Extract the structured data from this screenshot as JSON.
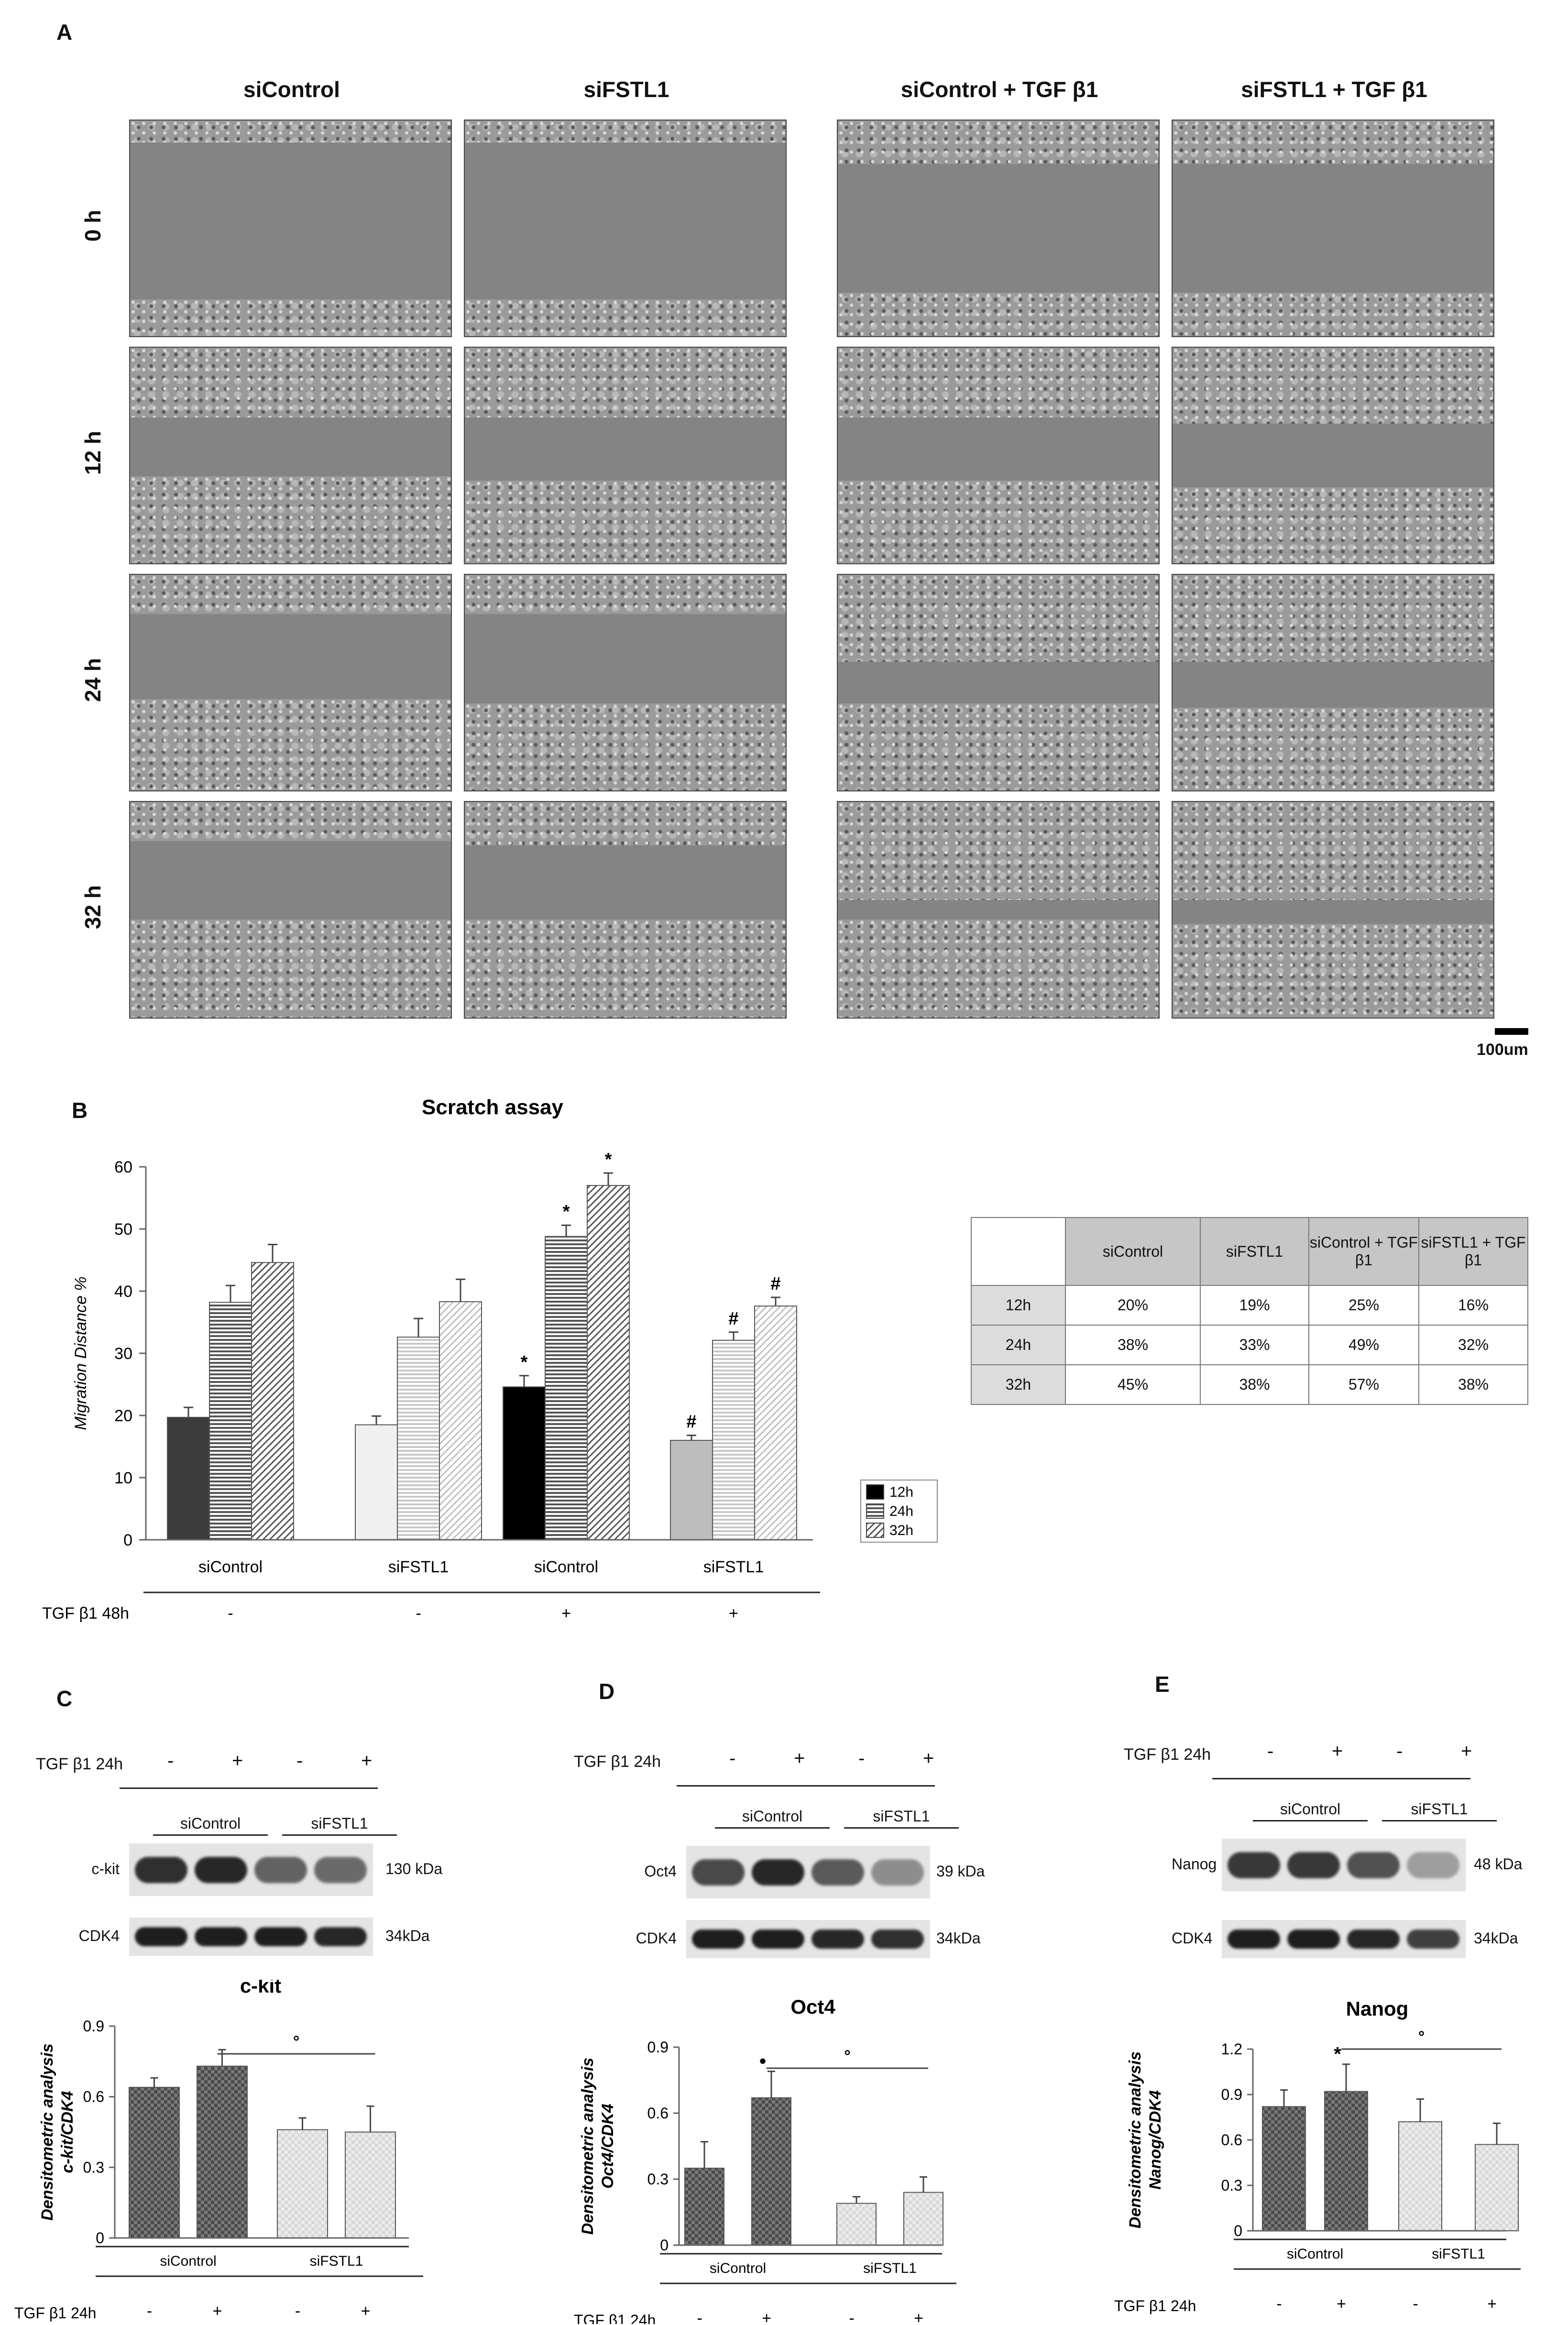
{
  "panel_a": {
    "letter": "A",
    "columns": [
      "siControl",
      "siFSTL1",
      "siControl + TGF β1",
      "siFSTL1 + TGF β1"
    ],
    "rows": [
      "0 h",
      "12 h",
      "24 h",
      "32 h"
    ],
    "scale_bar_label": "100um"
  },
  "panel_b": {
    "letter": "B",
    "table": {
      "headers": [
        "siControl",
        "siFSTL1",
        "siControl + TGF β1",
        "siFSTL1 + TGF β1"
      ],
      "rows": [
        {
          "label": "12h",
          "cells": [
            "20%",
            "19%",
            "25%",
            "16%"
          ]
        },
        {
          "label": "24h",
          "cells": [
            "38%",
            "33%",
            "49%",
            "32%"
          ]
        },
        {
          "label": "32h",
          "cells": [
            "45%",
            "38%",
            "57%",
            "38%"
          ]
        }
      ]
    }
  },
  "panel_c": {
    "letter": "C",
    "treatment_label": "TGF β1 24h",
    "signs": [
      "-",
      "+",
      "-",
      "+"
    ],
    "groups": [
      "siControl",
      "siFSTL1"
    ],
    "blot_rows": [
      {
        "name": "c-kit",
        "size": "130 kDa"
      },
      {
        "name": "CDK4",
        "size": "34kDa"
      }
    ]
  },
  "panel_d": {
    "letter": "D",
    "treatment_label": "TGF β1 24h",
    "signs": [
      "-",
      "+",
      "-",
      "+"
    ],
    "groups": [
      "siControl",
      "siFSTL1"
    ],
    "blot_rows": [
      {
        "name": "Oct4",
        "size": "39 kDa"
      },
      {
        "name": "CDK4",
        "size": "34kDa"
      }
    ]
  },
  "panel_e": {
    "letter": "E",
    "treatment_label": "TGF β1 24h",
    "signs": [
      "-",
      "+",
      "-",
      "+"
    ],
    "groups": [
      "siControl",
      "siFSTL1"
    ],
    "blot_rows": [
      {
        "name": "Nanog",
        "size": "48 kDa"
      },
      {
        "name": "CDK4",
        "size": "34kDa"
      }
    ]
  },
  "chart_data": [
    {
      "type": "bar",
      "title": "Scratch assay",
      "ylabel": "Migration Distance %",
      "xlabel": "",
      "categories": [
        "siControl",
        "siFSTL1",
        "siControl",
        "siFSTL1"
      ],
      "treatment_label": "TGF β1 48h",
      "treatment_signs": [
        "-",
        "-",
        "+",
        "+"
      ],
      "ylim": [
        0,
        60
      ],
      "yticks": [
        0,
        10,
        20,
        30,
        40,
        50,
        60
      ],
      "series": [
        {
          "name": "12h",
          "values": [
            19.7,
            18.5,
            24.6,
            16.0
          ],
          "errors": [
            1.6,
            1.4,
            1.8,
            0.8
          ]
        },
        {
          "name": "24h",
          "values": [
            38.2,
            32.6,
            48.8,
            32.1
          ],
          "errors": [
            2.7,
            3.0,
            1.8,
            1.3
          ]
        },
        {
          "name": "32h",
          "values": [
            44.6,
            38.3,
            57.0,
            37.6
          ],
          "errors": [
            2.9,
            3.6,
            2.0,
            1.4
          ]
        }
      ],
      "significance": [
        {
          "category": 2,
          "series": 0,
          "mark": "*"
        },
        {
          "category": 2,
          "series": 1,
          "mark": "*"
        },
        {
          "category": 2,
          "series": 2,
          "mark": "*"
        },
        {
          "category": 3,
          "series": 0,
          "mark": "#"
        },
        {
          "category": 3,
          "series": 1,
          "mark": "#"
        },
        {
          "category": 3,
          "series": 2,
          "mark": "#"
        }
      ],
      "legend": "right"
    },
    {
      "type": "bar",
      "title": "c-kit",
      "ylabel": "Densitometric analysis",
      "ylabel2": "c-kit/CDK4",
      "ylim": [
        0,
        0.9
      ],
      "yticks": [
        0,
        0.3,
        0.6,
        0.9
      ],
      "values": [
        0.64,
        0.73,
        0.46,
        0.45
      ],
      "errors": [
        0.04,
        0.07,
        0.05,
        0.11
      ],
      "groups": [
        "siControl",
        "siFSTL1"
      ],
      "treatment_label": "TGF β1 24h",
      "signs": [
        "-",
        "+",
        "-",
        "+"
      ],
      "significance_line": {
        "from": 1,
        "to": 3,
        "mark": "°"
      }
    },
    {
      "type": "bar",
      "title": "Oct4",
      "ylabel": "Densitometric analysis",
      "ylabel2": "Oct4/CDK4",
      "ylim": [
        0,
        0.9
      ],
      "yticks": [
        0,
        0.3,
        0.6,
        0.9
      ],
      "values": [
        0.35,
        0.67,
        0.19,
        0.24
      ],
      "errors": [
        0.12,
        0.12,
        0.03,
        0.07
      ],
      "groups": [
        "siControl",
        "siFSTL1"
      ],
      "treatment_label": "TGF β1 24h",
      "signs": [
        "-",
        "+",
        "-",
        "+"
      ],
      "point_mark": {
        "index": 1,
        "mark": "•"
      },
      "significance_line": {
        "from": 1,
        "to": 3,
        "mark": "°"
      }
    },
    {
      "type": "bar",
      "title": "Nanog",
      "ylabel": "Densitometric analysis",
      "ylabel2": "Nanog/CDK4",
      "ylim": [
        0,
        1.2
      ],
      "yticks": [
        0,
        0.3,
        0.6,
        0.9,
        1.2
      ],
      "values": [
        0.82,
        0.92,
        0.72,
        0.57
      ],
      "errors": [
        0.11,
        0.18,
        0.15,
        0.14
      ],
      "groups": [
        "siControl",
        "siFSTL1"
      ],
      "treatment_label": "TGF β1 24h",
      "signs": [
        "-",
        "+",
        "-",
        "+"
      ],
      "point_mark": {
        "index": 1,
        "mark": "*"
      },
      "significance_line": {
        "from": 1,
        "to": 3,
        "mark": "°"
      }
    }
  ]
}
